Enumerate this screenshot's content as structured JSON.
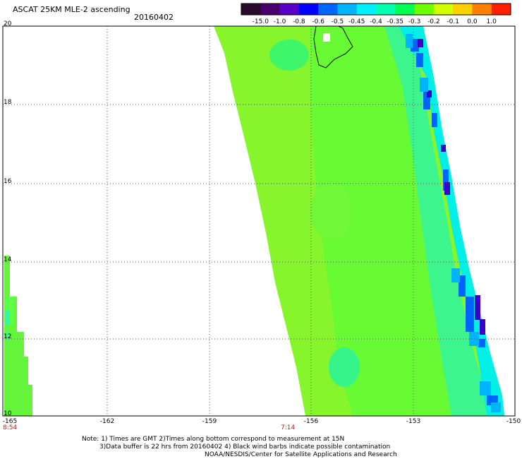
{
  "header": {
    "title": "ASCAT 25KM MLE-2 ascending",
    "date": "20160402"
  },
  "colorbar": {
    "labels": [
      "-15.0",
      "-1.0",
      "-0.8",
      "-0.6",
      "-0.5",
      "-0.45",
      "-0.4",
      "-0.35",
      "-0.3",
      "-0.2",
      "-0.1",
      "0.0",
      "1.0"
    ],
    "colors": [
      "#2a0a2a",
      "#4a006a",
      "#5a00c8",
      "#0000ff",
      "#0064ff",
      "#00b4ff",
      "#00f0ff",
      "#00ffb0",
      "#00ff50",
      "#70ff00",
      "#d2ff00",
      "#ffd000",
      "#ff8000",
      "#ff2000"
    ]
  },
  "map": {
    "lat_labels": [
      "20",
      "18",
      "16",
      "14",
      "12",
      "10"
    ],
    "lon_labels": [
      "-165",
      "-162",
      "-159",
      "-156",
      "-153",
      "-150"
    ],
    "time_labels": [
      "8:54",
      "7:14"
    ],
    "colors": {
      "bg_green": "#7cfc2a",
      "mid_green": "#55ff35",
      "cyan": "#00f0ff",
      "blue": "#0064ff",
      "purple": "#4a00c0",
      "grid": "#555555"
    }
  },
  "notes": {
    "line1": "Note: 1) Times are GMT 2)Times along bottom correspond to measurement at 15N",
    "line2": "3)Data buffer is 22 hrs from 20160402 4) Black wind barbs indicate possible contamination",
    "line3": "NOAA/NESDIS/Center for Satellite Applications and Research"
  }
}
